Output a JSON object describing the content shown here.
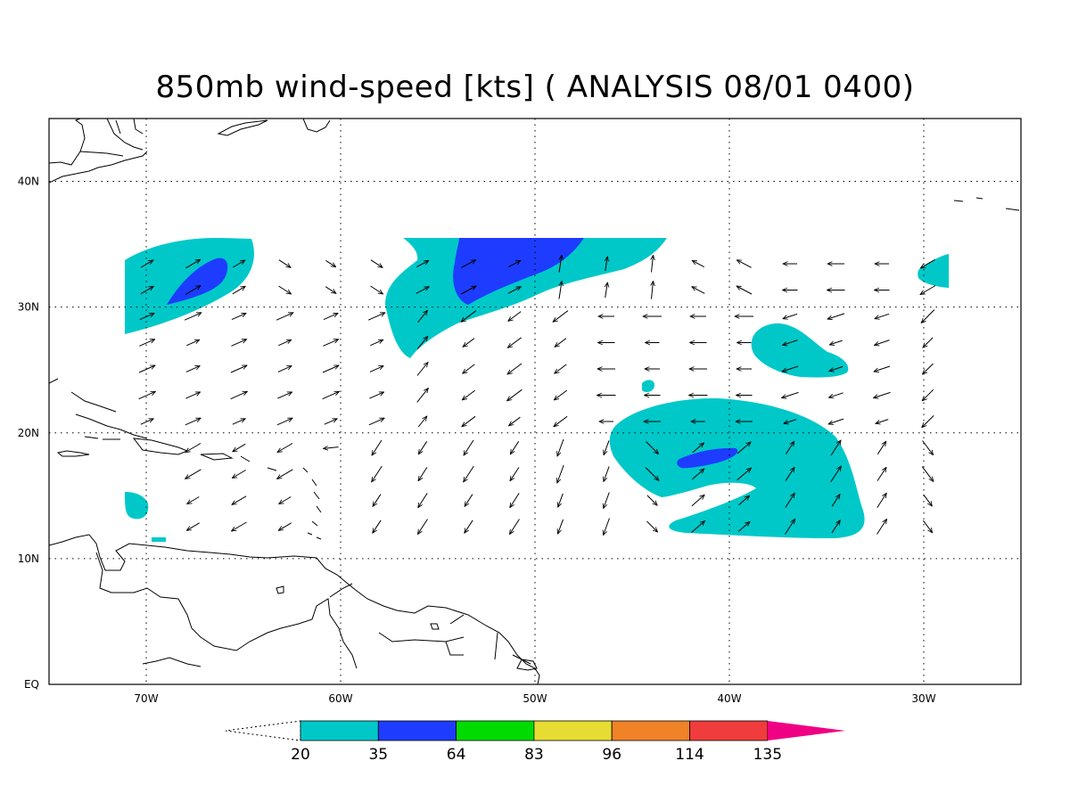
{
  "title": "850mb wind-speed [kts] ( ANALYSIS 08/01 0400)",
  "map": {
    "lon_range": [
      -75,
      -25
    ],
    "lat_range": [
      0,
      45
    ],
    "grid_lines": "dotted",
    "lat_labels": [
      {
        "value": 0,
        "text": "EQ"
      },
      {
        "value": 10,
        "text": "10N"
      },
      {
        "value": 20,
        "text": "20N"
      },
      {
        "value": 30,
        "text": "30N"
      },
      {
        "value": 40,
        "text": "40N"
      }
    ],
    "lon_labels": [
      {
        "value": -70,
        "text": "70W"
      },
      {
        "value": -60,
        "text": "60W"
      },
      {
        "value": -50,
        "text": "50W"
      },
      {
        "value": -40,
        "text": "40W"
      },
      {
        "value": -30,
        "text": "30W"
      }
    ]
  },
  "colorbar": {
    "colors": [
      "#00c8c8",
      "#1e3cff",
      "#00dc00",
      "#e6dc32",
      "#f08228",
      "#f03c3c",
      "#f00082"
    ],
    "labels": [
      "20",
      "35",
      "64",
      "83",
      "96",
      "114",
      "135"
    ]
  },
  "shade_colors": {
    "ge20": "#00c8c8",
    "ge35": "#1e3cff"
  }
}
